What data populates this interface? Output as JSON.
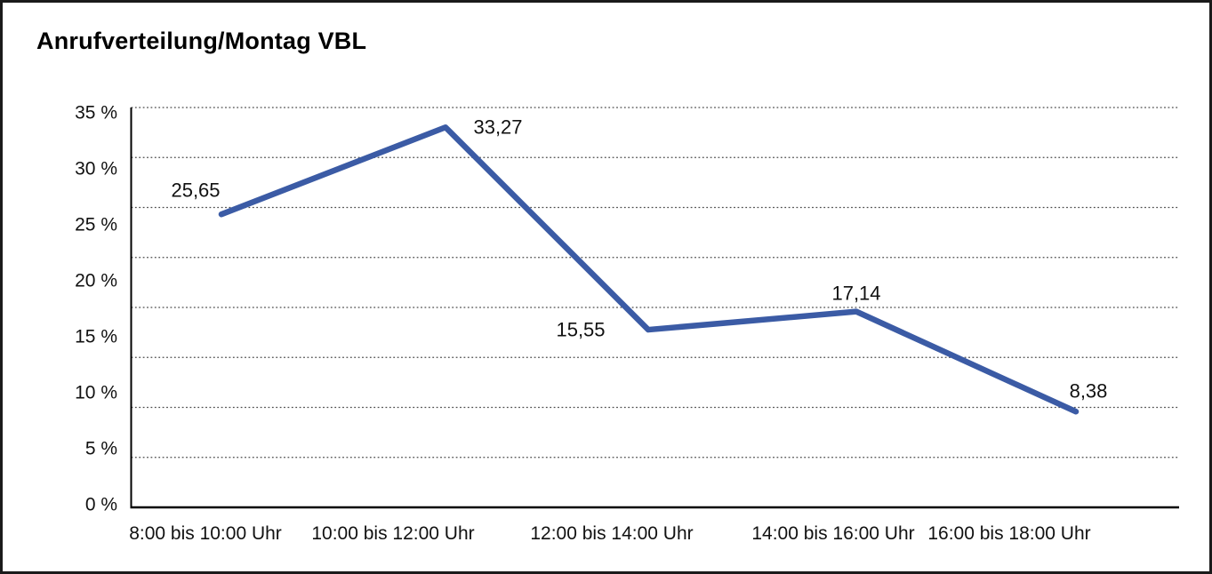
{
  "chart_data": {
    "type": "line",
    "title": "Anrufverteilung/Montag VBL",
    "categories": [
      "8:00 bis 10:00 Uhr",
      "10:00 bis 12:00 Uhr",
      "12:00 bis 14:00 Uhr",
      "14:00 bis 16:00 Uhr",
      "16:00 bis 18:00 Uhr"
    ],
    "series": [
      {
        "values": [
          25.65,
          33.27,
          15.55,
          17.14,
          8.38
        ],
        "value_labels": [
          "25,65",
          "33,27",
          "15,55",
          "17,14",
          "8,38"
        ],
        "color": "#3B5BA5"
      }
    ],
    "y_ticks": [
      "35 %",
      "30 %",
      "25 %",
      "20 %",
      "15 %",
      "10 %",
      "5 %",
      "0 %"
    ],
    "ylim": [
      0,
      35
    ],
    "y_unit": "%",
    "xlabel": "",
    "ylabel": "",
    "grid": "horizontal-dotted",
    "legend": "none",
    "decimal_separator": ",",
    "colors": {
      "line": "#3B5BA5",
      "axis": "#000000",
      "gridline": "#4a4a4a",
      "text": "#111111",
      "background": "#ffffff",
      "border": "#1a1a1a"
    }
  }
}
